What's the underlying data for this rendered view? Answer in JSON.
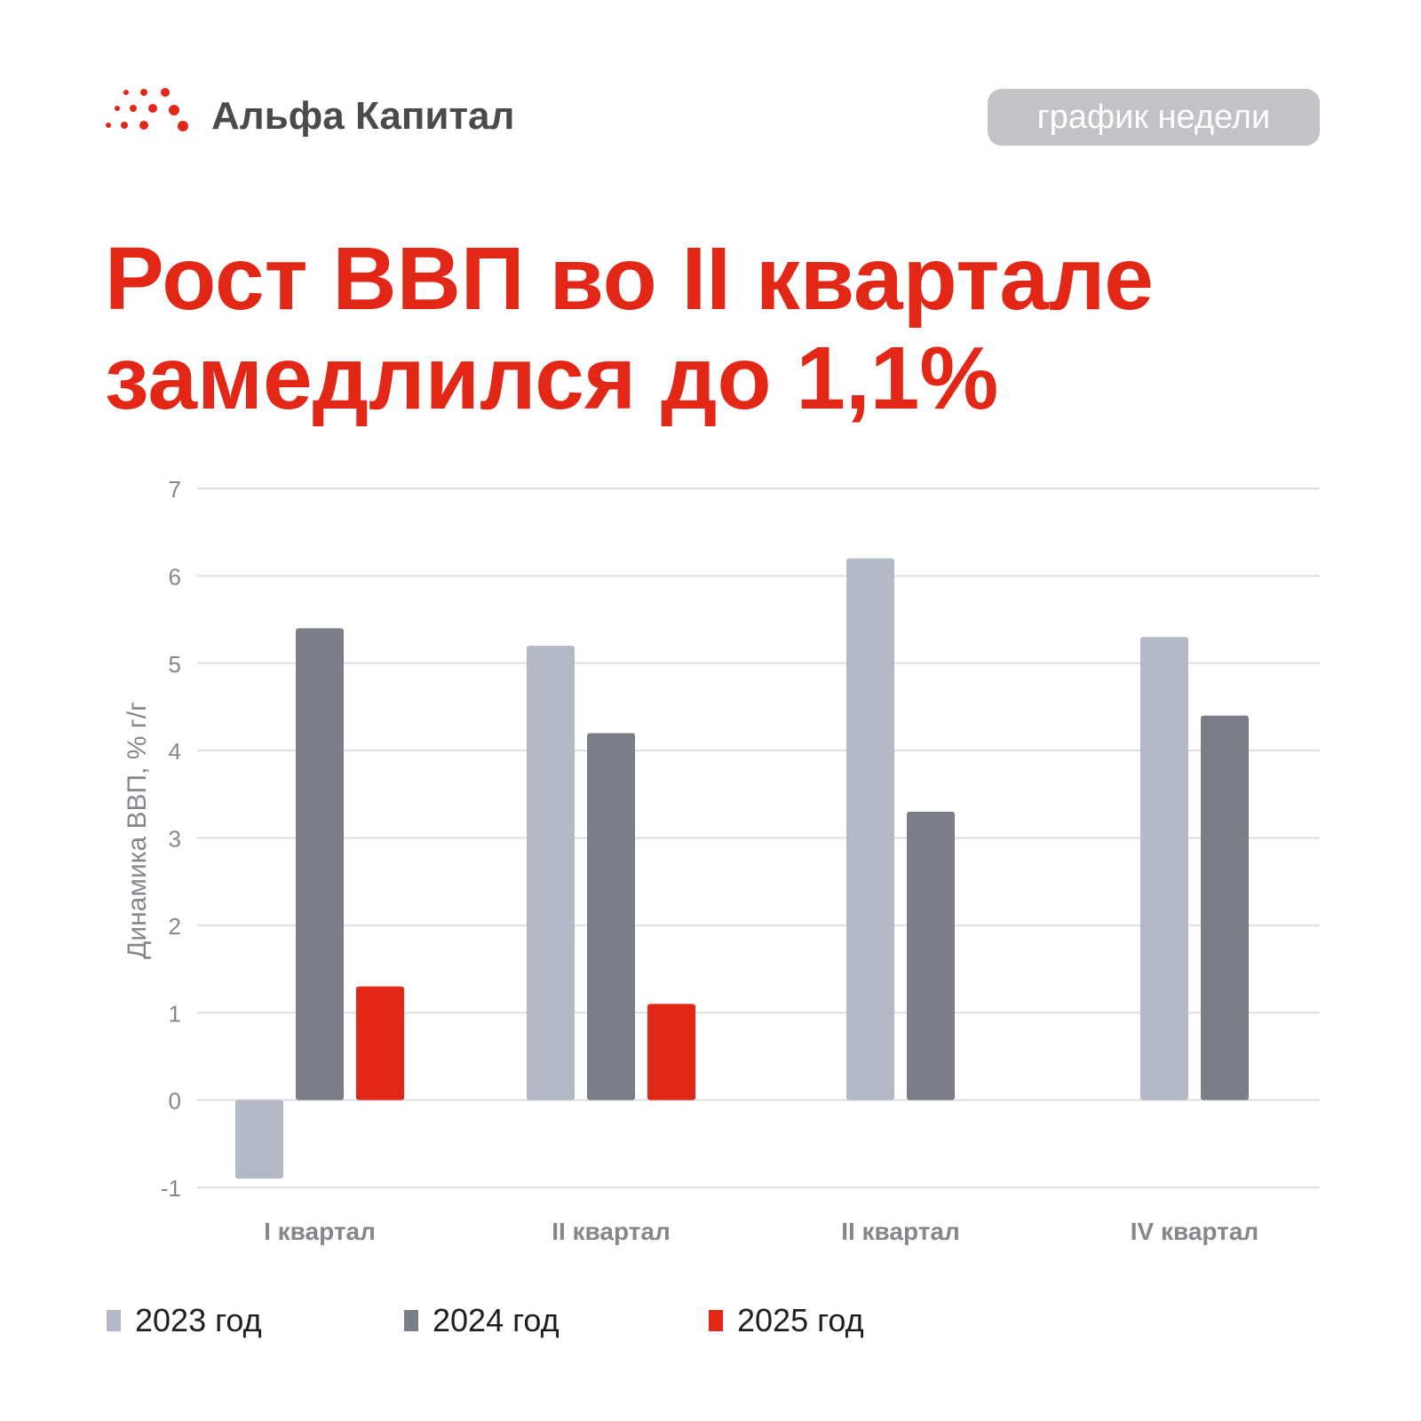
{
  "brand": {
    "name": "Альфа Капитал",
    "badge": "график недели",
    "accent_color": "#e32717"
  },
  "headline": {
    "line1": "Рост ВВП во II квартале",
    "line2": "замедлился до 1,1%"
  },
  "chart_data": {
    "type": "bar",
    "categories": [
      "I квартал",
      "II квартал",
      "II квартал",
      "IV квартал"
    ],
    "series": [
      {
        "name": "2023 год",
        "color": "#b3b9c6",
        "values": [
          -0.9,
          5.2,
          6.2,
          5.3
        ]
      },
      {
        "name": "2024 год",
        "color": "#7a7e88",
        "values": [
          5.4,
          4.2,
          3.3,
          4.4
        ]
      },
      {
        "name": "2025 год",
        "color": "#e32717",
        "values": [
          1.3,
          1.1,
          null,
          null
        ]
      }
    ],
    "ylabel": "Динамика ВВП, % г/г",
    "xlabel": "",
    "ylim": [
      -1,
      7
    ],
    "yticks": [
      "-1",
      "0",
      "1",
      "2",
      "3",
      "4",
      "5",
      "6",
      "7"
    ],
    "grid": true,
    "legend_position": "bottom"
  }
}
